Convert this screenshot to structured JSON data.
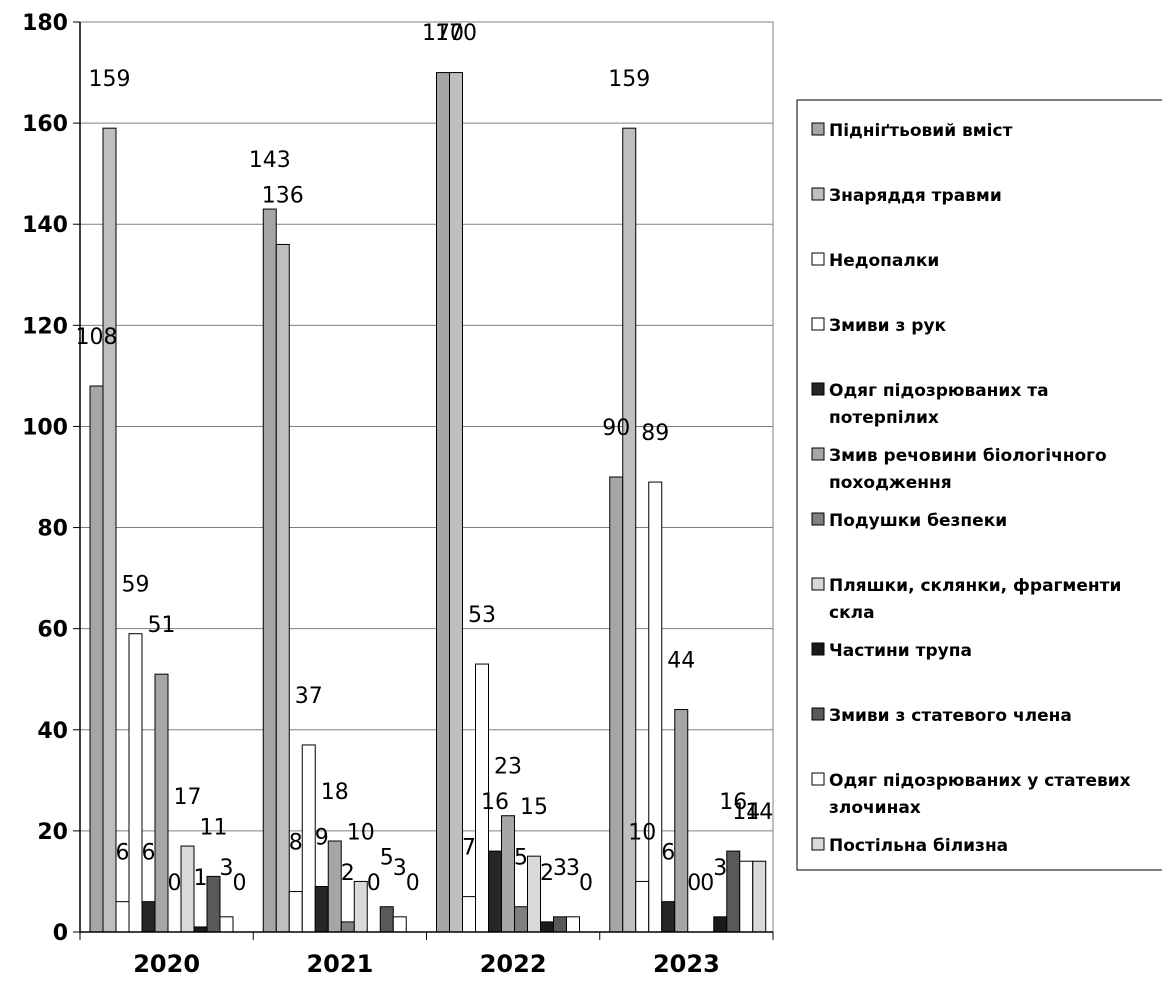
{
  "chart_data": {
    "type": "bar",
    "title": "",
    "xlabel": "",
    "ylabel": "",
    "ylim": [
      0,
      180
    ],
    "yticks": [
      0,
      20,
      40,
      60,
      80,
      100,
      120,
      140,
      160,
      180
    ],
    "grid": true,
    "legend_position": "right",
    "categories": [
      "2020",
      "2021",
      "2022",
      "2023"
    ],
    "series": [
      {
        "name": "Підніґтьовий вміст",
        "color": "#a6a6a6",
        "values": [
          108,
          143,
          170,
          90
        ]
      },
      {
        "name": "Знаряддя травми",
        "color": "#bfbfbf",
        "values": [
          159,
          136,
          170,
          159
        ]
      },
      {
        "name": "Недопалки",
        "color": "#ffffff",
        "values": [
          6,
          8,
          7,
          10
        ]
      },
      {
        "name": "Змиви з рук",
        "color": "#ffffff",
        "values": [
          59,
          37,
          53,
          89
        ]
      },
      {
        "name": "Одяг підозрюваних та потерпілих",
        "color": "#262626",
        "values": [
          6,
          9,
          16,
          6
        ]
      },
      {
        "name": "Змив речовини біологічного походження",
        "color": "#a6a6a6",
        "values": [
          51,
          18,
          23,
          44
        ]
      },
      {
        "name": "Подушки безпеки",
        "color": "#808080",
        "values": [
          0,
          2,
          5,
          0
        ]
      },
      {
        "name": "Пляшки, склянки, фрагменти скла",
        "color": "#d9d9d9",
        "values": [
          17,
          10,
          15,
          0
        ]
      },
      {
        "name": "Частини трупа",
        "color": "#1a1a1a",
        "values": [
          1,
          0,
          2,
          3
        ]
      },
      {
        "name": "Змиви з статевого члена",
        "color": "#595959",
        "values": [
          11,
          5,
          3,
          16
        ]
      },
      {
        "name": "Одяг підозрюваних у статевих злочинах",
        "color": "#ffffff",
        "values": [
          3,
          3,
          3,
          14
        ]
      },
      {
        "name": "Постільна білизна",
        "color": "#d9d9d9",
        "values": [
          0,
          0,
          0,
          14
        ]
      }
    ]
  }
}
